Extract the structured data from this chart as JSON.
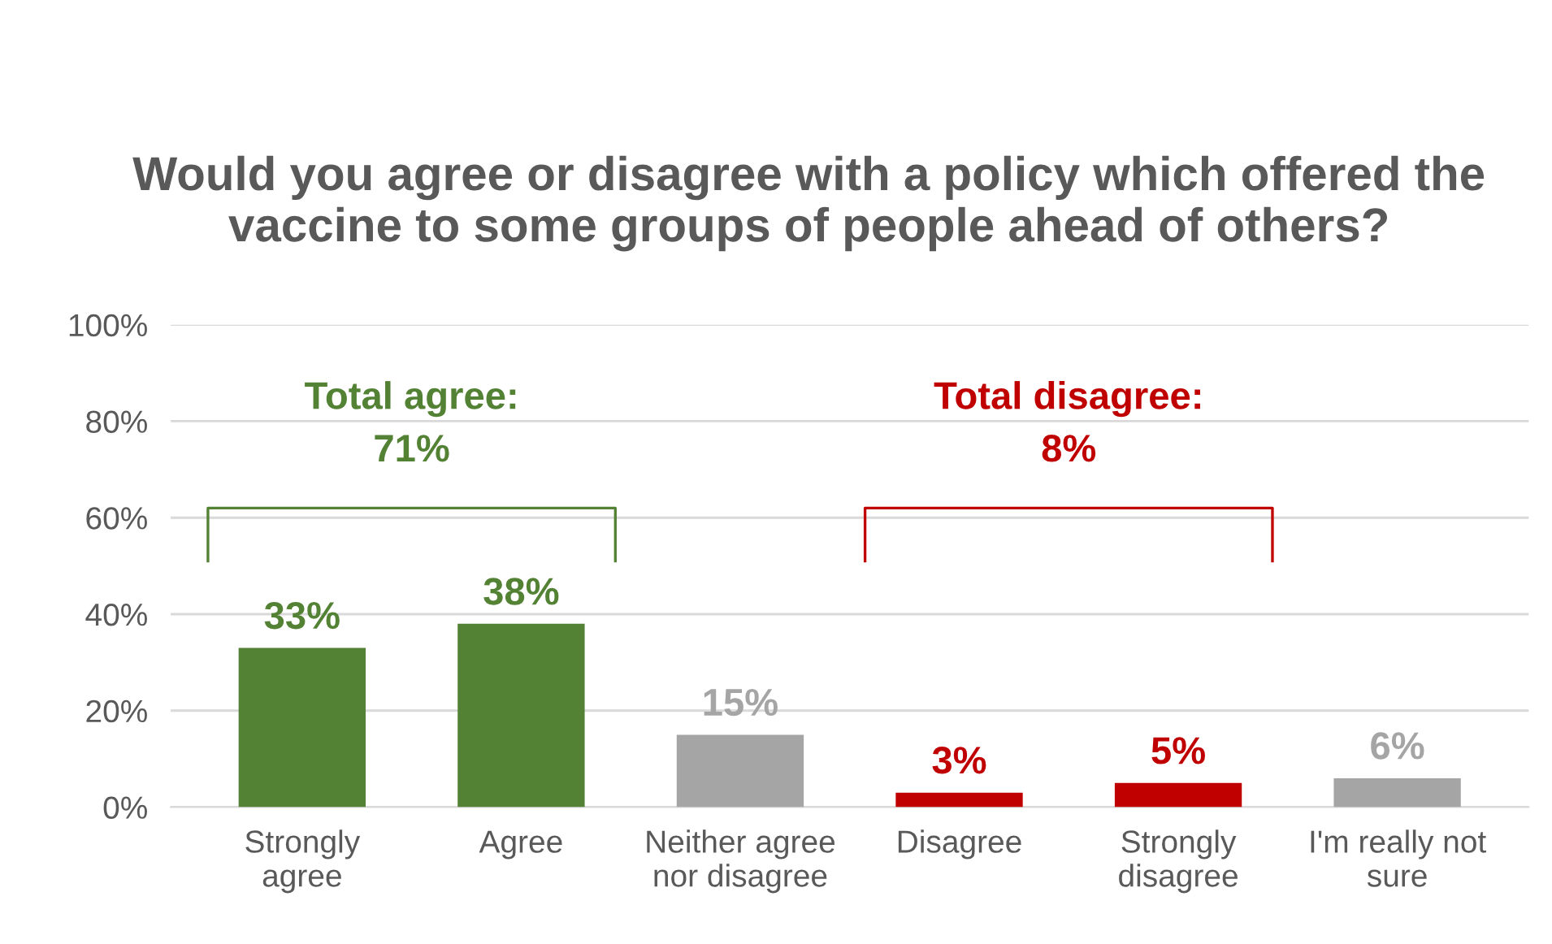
{
  "chart_data": {
    "type": "bar",
    "title": "Would you agree or disagree with a policy which offered the vaccine to some groups of people ahead of others?",
    "categories": [
      "Strongly\nagree",
      "Agree",
      "Neither agree\nnor disagree",
      "Disagree",
      "Strongly\ndisagree",
      "I'm really not\nsure"
    ],
    "values": [
      33,
      38,
      15,
      3,
      5,
      6
    ],
    "colors": [
      "#548235",
      "#548235",
      "#a5a5a5",
      "#c00000",
      "#c00000",
      "#a5a5a5"
    ],
    "value_labels": [
      "33%",
      "38%",
      "15%",
      "3%",
      "5%",
      "6%"
    ],
    "ylim": [
      0,
      100
    ],
    "yticks": [
      {
        "value": 0,
        "label": "0%"
      },
      {
        "value": 20,
        "label": "20%"
      },
      {
        "value": 40,
        "label": "40%"
      },
      {
        "value": 60,
        "label": "60%"
      },
      {
        "value": 80,
        "label": "80%"
      },
      {
        "value": 100,
        "label": "100%"
      }
    ],
    "grid": "y",
    "annotations": [
      "Total agree:\n71%",
      "Total disagree:\n8%"
    ]
  }
}
